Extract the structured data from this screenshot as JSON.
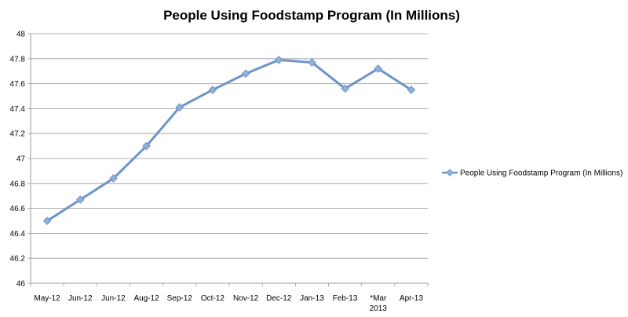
{
  "chart_data": {
    "type": "line",
    "title": "People Using Foodstamp Program (In Millions)",
    "xlabel": "",
    "ylabel": "",
    "categories": [
      [
        "May-12"
      ],
      [
        "Jun-12"
      ],
      [
        "Jun-12"
      ],
      [
        "Aug-12"
      ],
      [
        "Sep-12"
      ],
      [
        "Oct-12"
      ],
      [
        "Nov-12"
      ],
      [
        "Dec-12"
      ],
      [
        "Jan-13"
      ],
      [
        "Feb-13"
      ],
      [
        "*Mar",
        "2013"
      ],
      [
        "Apr-13"
      ]
    ],
    "series": [
      {
        "name": "People Using Foodstamp Program (In Millions)",
        "values": [
          46.5,
          46.67,
          46.84,
          47.1,
          47.41,
          47.55,
          47.68,
          47.79,
          47.77,
          47.56,
          47.72,
          47.55
        ]
      }
    ],
    "ylim": [
      46,
      48
    ],
    "yticks": [
      46,
      46.2,
      46.4,
      46.6,
      46.8,
      47,
      47.2,
      47.4,
      47.6,
      47.8,
      48
    ],
    "ytick_labels": [
      "46",
      "46.2",
      "46.4",
      "46.6",
      "46.8",
      "47",
      "47.2",
      "47.4",
      "47.6",
      "47.8",
      "48"
    ],
    "grid": true,
    "legend_position": "right",
    "series_color": "#6b94c8",
    "marker_fill": "#8fb2dc",
    "grid_color": "#9a9a9a"
  }
}
